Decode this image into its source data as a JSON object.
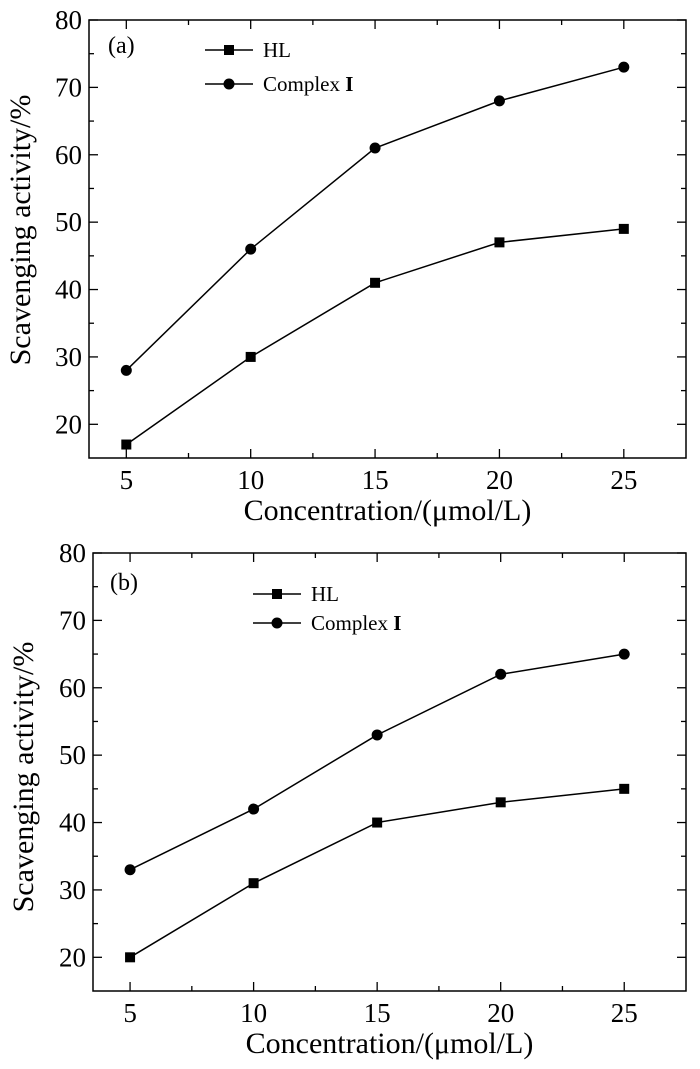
{
  "chart_data": [
    {
      "type": "line",
      "panel_label": "(a)",
      "xlabel": "Concentration/(μmol/L)",
      "ylabel": "Scavenging activity/%",
      "x": [
        5,
        10,
        15,
        20,
        25
      ],
      "xlim": [
        3.5,
        27.5
      ],
      "ylim": [
        15,
        80
      ],
      "xticks": [
        "5",
        "10",
        "15",
        "20",
        "25"
      ],
      "yticks": [
        "20",
        "30",
        "40",
        "50",
        "60",
        "70",
        "80"
      ],
      "legend_position": "top-left",
      "series": [
        {
          "name": "HL",
          "marker": "square",
          "values": [
            17,
            30,
            41,
            47,
            49
          ]
        },
        {
          "name": "Complex",
          "name_suffix": "I",
          "marker": "circle",
          "values": [
            28,
            46,
            61,
            68,
            73
          ]
        }
      ]
    },
    {
      "type": "line",
      "panel_label": "(b)",
      "xlabel": "Concentration/(μmol/L)",
      "ylabel": "Scavenging activity/%",
      "x": [
        5,
        10,
        15,
        20,
        25
      ],
      "xlim": [
        3.5,
        27.5
      ],
      "ylim": [
        15,
        80
      ],
      "xticks": [
        "5",
        "10",
        "15",
        "20",
        "25"
      ],
      "yticks": [
        "20",
        "30",
        "40",
        "50",
        "60",
        "70",
        "80"
      ],
      "legend_position": "top-left",
      "series": [
        {
          "name": "HL",
          "marker": "square",
          "values": [
            20,
            31,
            40,
            43,
            45
          ]
        },
        {
          "name": "Complex",
          "name_suffix": "I",
          "marker": "circle",
          "values": [
            33,
            42,
            53,
            62,
            65
          ]
        }
      ]
    }
  ]
}
